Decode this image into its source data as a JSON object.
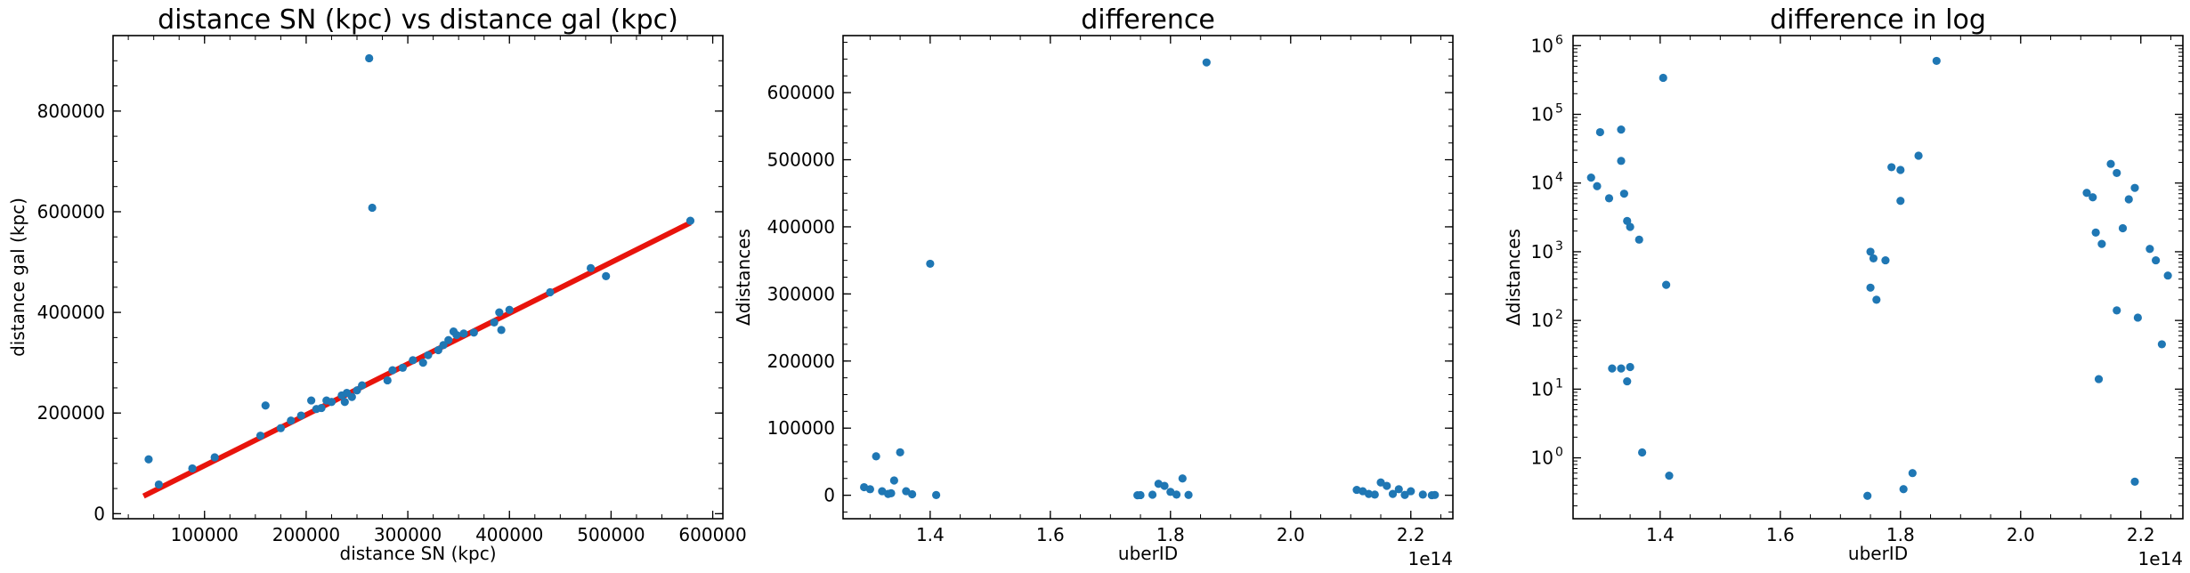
{
  "chart_data": [
    {
      "type": "scatter",
      "title": "distance SN (kpc) vs distance gal (kpc)",
      "xlabel": "distance SN (kpc)",
      "ylabel": "distance gal (kpc)",
      "xlim": [
        10000,
        610000
      ],
      "ylim": [
        -10000,
        950000
      ],
      "xticks": [
        100000,
        200000,
        300000,
        400000,
        500000,
        600000
      ],
      "xtick_labels": [
        "100000",
        "200000",
        "300000",
        "400000",
        "500000",
        "600000"
      ],
      "yticks": [
        0,
        200000,
        400000,
        600000,
        800000
      ],
      "ytick_labels": [
        "0",
        "200000",
        "400000",
        "600000",
        "800000"
      ],
      "scale": "linear",
      "grid": false,
      "colors": {
        "points": "#1f77b4",
        "line": "#e8140c"
      },
      "line": {
        "x": [
          40000,
          578000
        ],
        "y": [
          35000,
          578000
        ]
      },
      "x": [
        45000,
        55000,
        88000,
        110000,
        155000,
        160000,
        175000,
        185000,
        195000,
        205000,
        210000,
        215000,
        220000,
        225000,
        235000,
        238000,
        240000,
        245000,
        250000,
        255000,
        262000,
        265000,
        280000,
        285000,
        295000,
        305000,
        315000,
        320000,
        330000,
        335000,
        340000,
        345000,
        348000,
        355000,
        365000,
        385000,
        390000,
        392000,
        400000,
        440000,
        480000,
        495000,
        578000
      ],
      "y": [
        108000,
        58000,
        90000,
        112000,
        155000,
        215000,
        170000,
        185000,
        195000,
        225000,
        208000,
        210000,
        225000,
        222000,
        235000,
        222000,
        240000,
        232000,
        245000,
        255000,
        905000,
        608000,
        265000,
        285000,
        290000,
        305000,
        300000,
        315000,
        325000,
        335000,
        345000,
        362000,
        355000,
        358000,
        360000,
        380000,
        400000,
        365000,
        405000,
        440000,
        488000,
        472000,
        582000
      ]
    },
    {
      "type": "scatter",
      "title": "difference",
      "xlabel": "uberID",
      "ylabel": "Δdistances",
      "x_offset_label": "1e14",
      "xlim": [
        1.255,
        2.27
      ],
      "ylim": [
        -35000,
        685000
      ],
      "xticks": [
        1.4,
        1.6,
        1.8,
        2.0,
        2.2
      ],
      "xtick_labels": [
        "1.4",
        "1.6",
        "1.8",
        "2.0",
        "2.2"
      ],
      "yticks": [
        0,
        100000,
        200000,
        300000,
        400000,
        500000,
        600000
      ],
      "ytick_labels": [
        "0",
        "100000",
        "200000",
        "300000",
        "400000",
        "500000",
        "600000"
      ],
      "scale": "linear",
      "grid": false,
      "colors": {
        "points": "#1f77b4"
      },
      "x": [
        1.29,
        1.3,
        1.31,
        1.32,
        1.33,
        1.335,
        1.34,
        1.35,
        1.36,
        1.37,
        1.4,
        1.41,
        1.745,
        1.75,
        1.77,
        1.78,
        1.79,
        1.8,
        1.81,
        1.82,
        1.83,
        1.86,
        2.11,
        2.12,
        2.13,
        2.14,
        2.15,
        2.16,
        2.17,
        2.18,
        2.19,
        2.2,
        2.22,
        2.235,
        2.24
      ],
      "y": [
        12000,
        9000,
        58000,
        6000,
        2000,
        3000,
        22000,
        64000,
        6000,
        1500,
        345000,
        300,
        0,
        200,
        800,
        17000,
        14000,
        5000,
        1000,
        25000,
        500,
        645000,
        8000,
        6000,
        2000,
        1000,
        19000,
        14000,
        2000,
        9000,
        500,
        6000,
        1000,
        50,
        400
      ]
    },
    {
      "type": "scatter",
      "title": "difference in log",
      "xlabel": "uberID",
      "ylabel": "Δdistances",
      "x_offset_label": "1e14",
      "xlim": [
        1.255,
        2.27
      ],
      "ylim": [
        0.13,
        1400000
      ],
      "xticks": [
        1.4,
        1.6,
        1.8,
        2.0,
        2.2
      ],
      "xtick_labels": [
        "1.4",
        "1.6",
        "1.8",
        "2.0",
        "2.2"
      ],
      "yticks": [
        1,
        10,
        100,
        1000,
        10000,
        100000,
        1000000
      ],
      "ytick_labels": [
        "10",
        "10",
        "10",
        "10",
        "10",
        "10",
        "10"
      ],
      "ytick_exponents": [
        "0",
        "1",
        "2",
        "3",
        "4",
        "5",
        "6"
      ],
      "scale": "log",
      "grid": false,
      "colors": {
        "points": "#1f77b4"
      },
      "x": [
        1.285,
        1.295,
        1.3,
        1.315,
        1.32,
        1.335,
        1.34,
        1.345,
        1.35,
        1.365,
        1.335,
        1.335,
        1.345,
        1.35,
        1.37,
        1.405,
        1.41,
        1.415,
        1.745,
        1.75,
        1.755,
        1.75,
        1.76,
        1.775,
        1.785,
        1.8,
        1.8,
        1.805,
        1.82,
        1.83,
        1.86,
        2.11,
        2.12,
        2.125,
        2.135,
        2.15,
        2.16,
        2.16,
        2.17,
        2.18,
        2.19,
        2.195,
        2.215,
        2.225,
        2.235,
        2.245,
        2.13,
        2.19
      ],
      "y": [
        12000,
        9000,
        55000,
        6000,
        20,
        60000,
        7000,
        2800,
        2300,
        1500,
        21000,
        20,
        13,
        21,
        1.2,
        340000,
        330,
        0.55,
        0.28,
        1000,
        800,
        300,
        200,
        750,
        17000,
        15500,
        5500,
        0.35,
        0.6,
        25000,
        600000,
        7200,
        6200,
        1900,
        1300,
        19000,
        14000,
        140,
        2200,
        5800,
        8500,
        110,
        1100,
        750,
        45,
        450,
        14,
        0.45
      ]
    }
  ]
}
